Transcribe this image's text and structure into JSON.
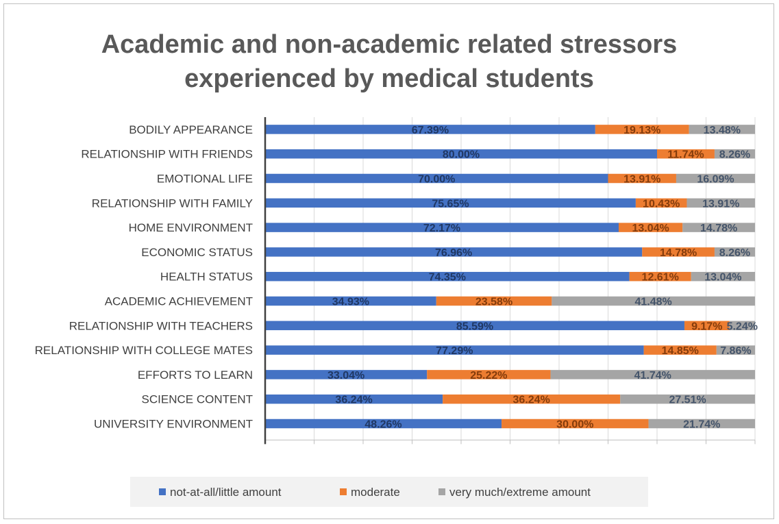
{
  "chart_data": {
    "type": "bar",
    "orientation": "horizontal",
    "stacked": true,
    "title_lines": [
      "Academic and non-academic related stressors",
      "experienced by medical students"
    ],
    "categories": [
      "BODILY APPEARANCE",
      "RELATIONSHIP WITH FRIENDS",
      "EMOTIONAL LIFE",
      "RELATIONSHIP WITH FAMILY",
      "HOME ENVIRONMENT",
      "ECONOMIC STATUS",
      "HEALTH STATUS",
      "ACADEMIC ACHIEVEMENT",
      "RELATIONSHIP WITH TEACHERS",
      "RELATIONSHIP WITH COLLEGE MATES",
      "EFFORTS TO LEARN",
      "SCIENCE CONTENT",
      "UNIVERSITY ENVIRONMENT"
    ],
    "series": [
      {
        "name": "not-at-all/little amount",
        "color": "#4472C4",
        "label_color": "#203864",
        "values": [
          67.39,
          80.0,
          70.0,
          75.65,
          72.17,
          76.96,
          74.35,
          34.93,
          85.59,
          77.29,
          33.04,
          36.24,
          48.26
        ],
        "labels": [
          "67.39%",
          "80.00%",
          "70.00%",
          "75.65%",
          "72.17%",
          "76.96%",
          "74.35%",
          "34.93%",
          "85.59%",
          "77.29%",
          "33.04%",
          "36.24%",
          "48.26%"
        ]
      },
      {
        "name": "moderate",
        "color": "#ED7D31",
        "label_color": "#843C0C",
        "values": [
          19.13,
          11.74,
          13.91,
          10.43,
          13.04,
          14.78,
          12.61,
          23.58,
          9.17,
          14.85,
          25.22,
          36.24,
          30.0
        ],
        "labels": [
          "19.13%",
          "11.74%",
          "13.91%",
          "10.43%",
          "13.04%",
          "14.78%",
          "12.61%",
          "23.58%",
          "9.17%",
          "14.85%",
          "25.22%",
          "36.24%",
          "30.00%"
        ]
      },
      {
        "name": "very much/extreme amount",
        "color": "#A5A5A5",
        "label_color": "#44546A",
        "values": [
          13.48,
          8.26,
          16.09,
          13.91,
          14.78,
          8.26,
          13.04,
          41.48,
          5.24,
          7.86,
          41.74,
          27.51,
          21.74
        ],
        "labels": [
          "13.48%",
          "8.26%",
          "16.09%",
          "13.91%",
          "14.78%",
          "8.26%",
          "13.04%",
          "41.48%",
          "5.24%",
          "7.86%",
          "41.74%",
          "27.51%",
          "21.74%"
        ]
      }
    ],
    "xlim": [
      0,
      100
    ],
    "grid": true,
    "legend": "bottom"
  }
}
